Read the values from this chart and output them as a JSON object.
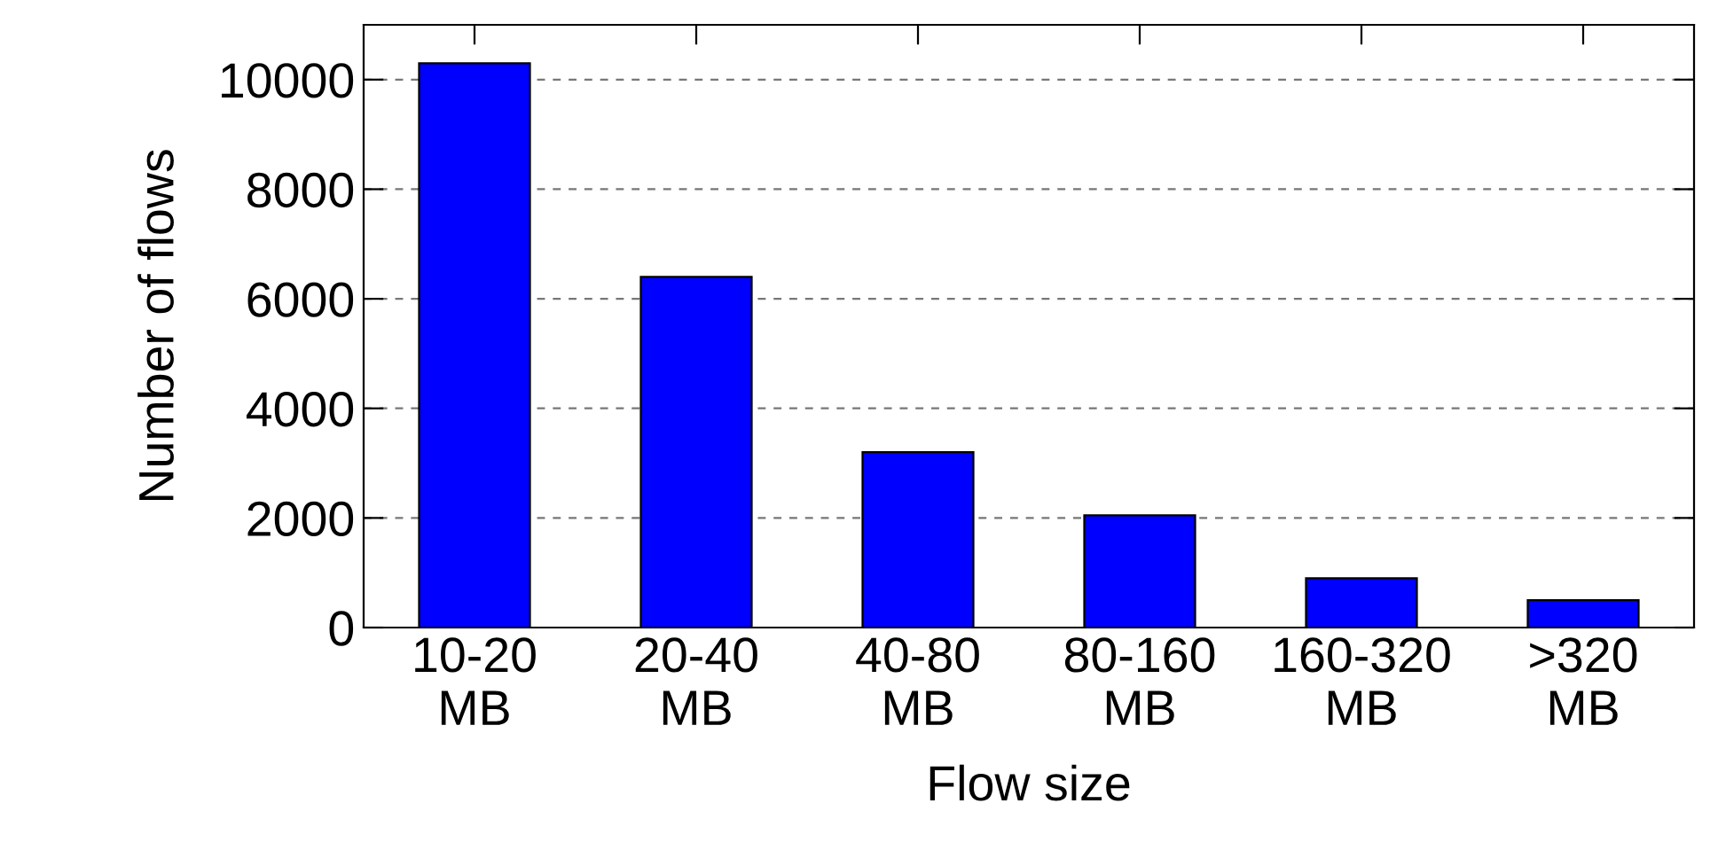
{
  "chart_data": {
    "type": "bar",
    "xlabel": "Flow size",
    "ylabel": "Number of flows",
    "categories": [
      "10-20\nMB",
      "20-40\nMB",
      "40-80\nMB",
      "80-160\nMB",
      "160-320\nMB",
      ">320\nMB"
    ],
    "values": [
      10300,
      6400,
      3200,
      2050,
      900,
      500
    ],
    "color": "#0000ff",
    "ylim": [
      0,
      11000
    ],
    "yticks": [
      0,
      2000,
      4000,
      6000,
      8000,
      10000
    ],
    "grid": "y",
    "legend": false
  }
}
